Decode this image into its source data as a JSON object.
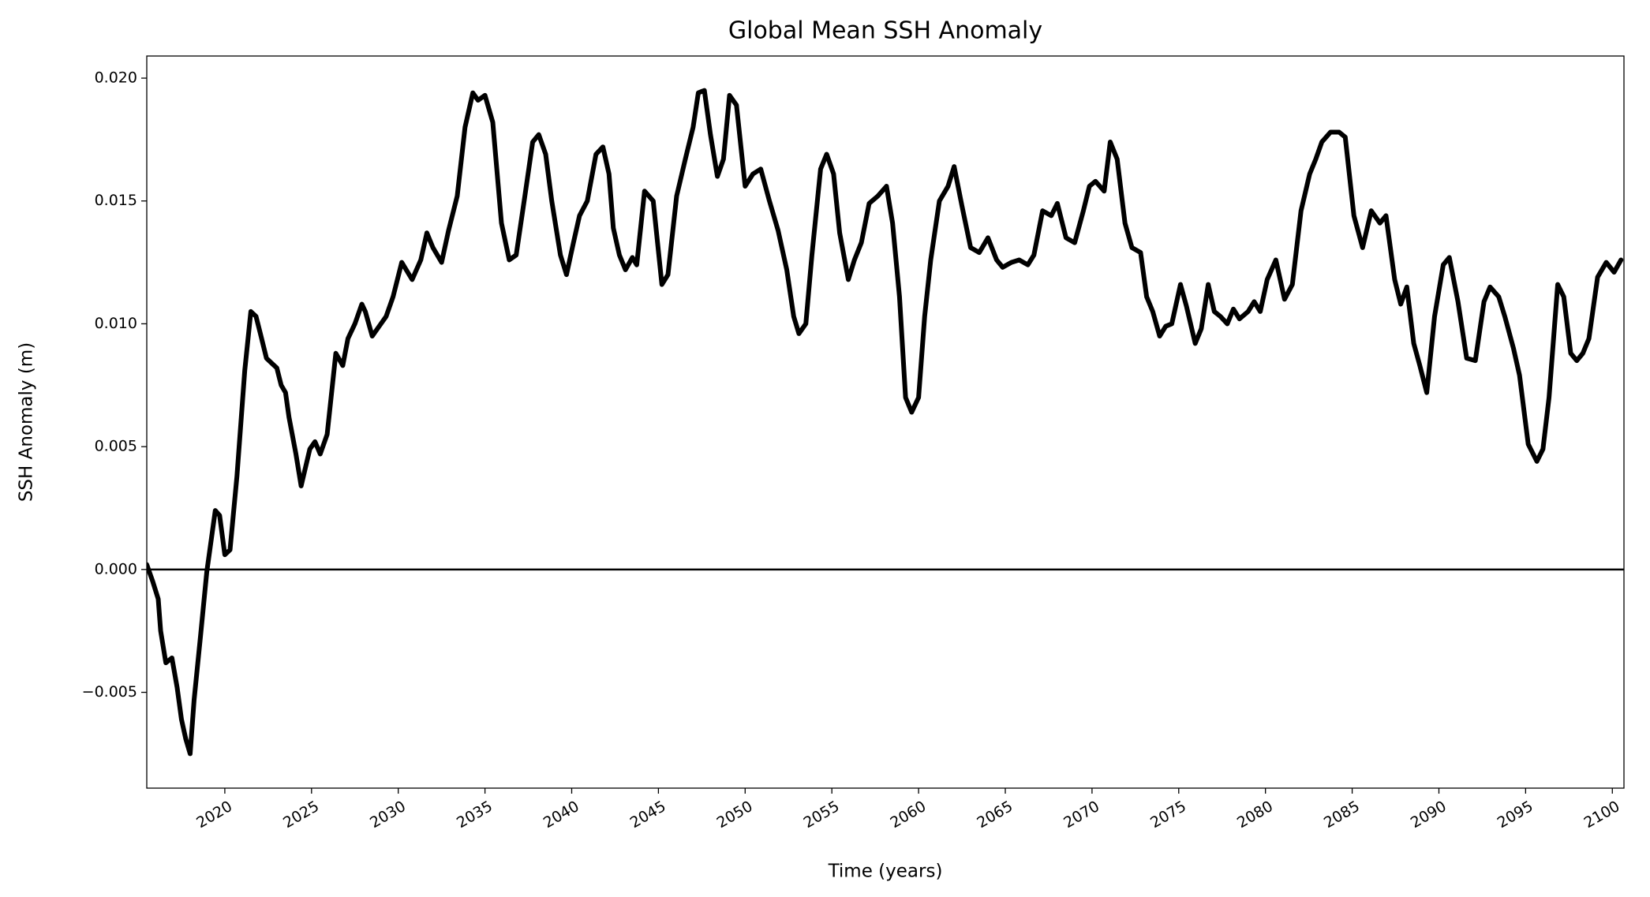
{
  "chart_data": {
    "type": "line",
    "title": "Global Mean SSH Anomaly",
    "xlabel": "Time (years)",
    "ylabel": "SSH Anomaly (m)",
    "color": "#000000",
    "hline": 0,
    "xlim": [
      2015.5,
      2100.67
    ],
    "ylim": [
      -0.0089,
      0.0209
    ],
    "xticks": [
      2020,
      2025,
      2030,
      2035,
      2040,
      2045,
      2050,
      2055,
      2060,
      2065,
      2070,
      2075,
      2080,
      2085,
      2090,
      2095,
      2100
    ],
    "yticks": [
      {
        "value": -0.005,
        "label": "−0.005"
      },
      {
        "value": 0,
        "label": "0.000"
      },
      {
        "value": 0.005,
        "label": "0.005"
      },
      {
        "value": 0.01,
        "label": "0.010"
      },
      {
        "value": 0.015,
        "label": "0.015"
      },
      {
        "value": 0.02,
        "label": "0.020"
      }
    ],
    "x": [
      2015.5,
      2015.85,
      2016.16,
      2016.3,
      2016.6,
      2016.95,
      2017.25,
      2017.5,
      2017.75,
      2018.0,
      2018.23,
      2018.6,
      2018.96,
      2019.45,
      2019.7,
      2020.0,
      2020.3,
      2020.7,
      2021.15,
      2021.5,
      2021.8,
      2022.05,
      2022.4,
      2022.7,
      2023.0,
      2023.25,
      2023.5,
      2023.7,
      2024.1,
      2024.4,
      2024.9,
      2025.2,
      2025.5,
      2025.9,
      2026.4,
      2026.8,
      2027.1,
      2027.5,
      2027.9,
      2028.1,
      2028.5,
      2029.0,
      2029.3,
      2029.7,
      2030.2,
      2030.8,
      2031.3,
      2031.65,
      2032.0,
      2032.5,
      2032.9,
      2033.4,
      2033.85,
      2034.3,
      2034.6,
      2035.0,
      2035.45,
      2035.95,
      2036.4,
      2036.8,
      2037.3,
      2037.75,
      2038.1,
      2038.5,
      2038.85,
      2039.35,
      2039.7,
      2040.1,
      2040.45,
      2040.9,
      2041.4,
      2041.8,
      2042.15,
      2042.4,
      2042.75,
      2043.1,
      2043.5,
      2043.75,
      2044.2,
      2044.7,
      2045.2,
      2045.55,
      2046.05,
      2046.55,
      2047.0,
      2047.3,
      2047.65,
      2048.0,
      2048.4,
      2048.75,
      2049.1,
      2049.5,
      2050.0,
      2050.45,
      2050.9,
      2051.4,
      2051.9,
      2052.4,
      2052.8,
      2053.1,
      2053.5,
      2053.85,
      2054.35,
      2054.7,
      2055.1,
      2055.45,
      2055.95,
      2056.3,
      2056.7,
      2057.15,
      2057.65,
      2058.15,
      2058.5,
      2058.9,
      2059.25,
      2059.6,
      2060.0,
      2060.35,
      2060.7,
      2061.2,
      2061.7,
      2062.05,
      2062.5,
      2063.0,
      2063.5,
      2064.0,
      2064.5,
      2064.85,
      2065.35,
      2065.8,
      2066.3,
      2066.65,
      2067.15,
      2067.65,
      2068.0,
      2068.5,
      2069.0,
      2069.5,
      2069.85,
      2070.2,
      2070.7,
      2071.05,
      2071.45,
      2071.9,
      2072.3,
      2072.8,
      2073.15,
      2073.5,
      2073.9,
      2074.25,
      2074.6,
      2075.1,
      2075.45,
      2075.95,
      2076.3,
      2076.7,
      2077.05,
      2077.4,
      2077.8,
      2078.15,
      2078.5,
      2079.0,
      2079.35,
      2079.7,
      2080.1,
      2080.6,
      2081.1,
      2081.55,
      2082.05,
      2082.55,
      2082.9,
      2083.25,
      2083.75,
      2084.25,
      2084.6,
      2085.1,
      2085.6,
      2086.1,
      2086.6,
      2086.95,
      2087.45,
      2087.8,
      2088.15,
      2088.55,
      2088.9,
      2089.3,
      2089.75,
      2090.25,
      2090.6,
      2091.1,
      2091.6,
      2092.1,
      2092.6,
      2092.95,
      2093.45,
      2093.8,
      2094.3,
      2094.65,
      2095.15,
      2095.65,
      2096.0,
      2096.35,
      2096.85,
      2097.2,
      2097.6,
      2097.95,
      2098.3,
      2098.65,
      2099.15,
      2099.65,
      2100.1,
      2100.5
    ],
    "values": [
      0.0002,
      -0.0005,
      -0.0012,
      -0.0025,
      -0.0038,
      -0.0036,
      -0.0048,
      -0.0061,
      -0.0069,
      -0.0075,
      -0.0053,
      -0.0027,
      -0.0001,
      0.0024,
      0.0022,
      0.0006,
      0.0008,
      0.0038,
      0.0081,
      0.0105,
      0.0103,
      0.0096,
      0.0086,
      0.0084,
      0.0082,
      0.0075,
      0.0072,
      0.0062,
      0.0047,
      0.0034,
      0.0049,
      0.0052,
      0.0047,
      0.0055,
      0.0088,
      0.0083,
      0.0094,
      0.01,
      0.0108,
      0.0105,
      0.0095,
      0.01,
      0.0103,
      0.0111,
      0.0125,
      0.0118,
      0.0126,
      0.0137,
      0.0131,
      0.0125,
      0.0138,
      0.0152,
      0.018,
      0.0194,
      0.0191,
      0.0193,
      0.0182,
      0.0141,
      0.0126,
      0.0128,
      0.0152,
      0.0174,
      0.0177,
      0.0169,
      0.015,
      0.0128,
      0.012,
      0.0133,
      0.0144,
      0.015,
      0.0169,
      0.0172,
      0.0161,
      0.0139,
      0.0128,
      0.0122,
      0.0127,
      0.0124,
      0.0154,
      0.015,
      0.0116,
      0.012,
      0.0152,
      0.0167,
      0.018,
      0.0194,
      0.0195,
      0.0177,
      0.016,
      0.0167,
      0.0193,
      0.0189,
      0.0156,
      0.0161,
      0.0163,
      0.015,
      0.0138,
      0.0122,
      0.0103,
      0.0096,
      0.01,
      0.0128,
      0.0163,
      0.0169,
      0.0161,
      0.0137,
      0.0118,
      0.0126,
      0.0133,
      0.0149,
      0.0152,
      0.0156,
      0.0141,
      0.0111,
      0.007,
      0.0064,
      0.007,
      0.0103,
      0.0126,
      0.015,
      0.0156,
      0.0164,
      0.0148,
      0.0131,
      0.0129,
      0.0135,
      0.0126,
      0.0123,
      0.0125,
      0.0126,
      0.0124,
      0.0128,
      0.0146,
      0.0144,
      0.0149,
      0.0135,
      0.0133,
      0.0146,
      0.0156,
      0.0158,
      0.0154,
      0.0174,
      0.0167,
      0.0141,
      0.0131,
      0.0129,
      0.0111,
      0.0105,
      0.0095,
      0.0099,
      0.01,
      0.0116,
      0.0107,
      0.0092,
      0.0098,
      0.0116,
      0.0105,
      0.0103,
      0.01,
      0.0106,
      0.0102,
      0.0105,
      0.0109,
      0.0105,
      0.0118,
      0.0126,
      0.011,
      0.0116,
      0.0146,
      0.0161,
      0.0167,
      0.0174,
      0.0178,
      0.0178,
      0.0176,
      0.0144,
      0.0131,
      0.0146,
      0.0141,
      0.0144,
      0.0118,
      0.0108,
      0.0115,
      0.0092,
      0.0083,
      0.0072,
      0.0103,
      0.0124,
      0.0127,
      0.0109,
      0.0086,
      0.0085,
      0.0109,
      0.0115,
      0.0111,
      0.0103,
      0.009,
      0.0079,
      0.0051,
      0.0044,
      0.0049,
      0.007,
      0.0116,
      0.0111,
      0.0088,
      0.0085,
      0.0088,
      0.0094,
      0.0119,
      0.0125,
      0.0121,
      0.0126
    ]
  }
}
